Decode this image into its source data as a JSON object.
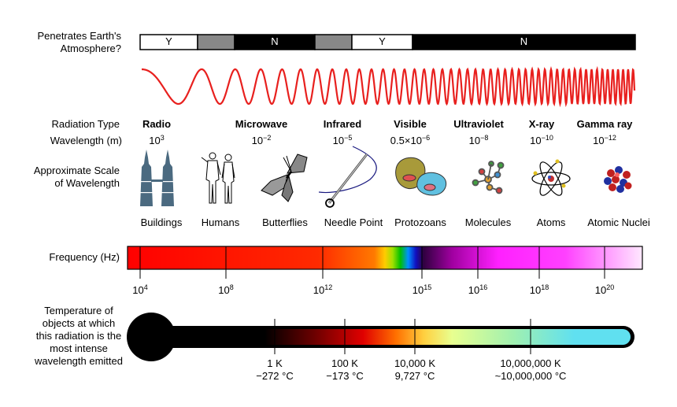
{
  "left_labels": {
    "penetrates": [
      "Penetrates Earth's",
      "Atmosphere?"
    ],
    "radiation_type": "Radiation Type",
    "wavelength": "Wavelength (m)",
    "scale": [
      "Approximate Scale",
      "of Wavelength"
    ],
    "frequency": "Frequency (Hz)",
    "temperature": [
      "Temperature of",
      "objects at which",
      "this radiation is the",
      "most intense",
      "wavelength emitted"
    ]
  },
  "atmosphere_bar": [
    {
      "label": "Y",
      "color": "#ffffff",
      "text_color": "#000000"
    },
    {
      "label": "",
      "color": "#888888",
      "text_color": "#000000"
    },
    {
      "label": "N",
      "color": "#000000",
      "text_color": "#ffffff"
    },
    {
      "label": "",
      "color": "#888888",
      "text_color": "#000000"
    },
    {
      "label": "Y",
      "color": "#ffffff",
      "text_color": "#000000"
    },
    {
      "label": "N",
      "color": "#000000",
      "text_color": "#ffffff"
    }
  ],
  "radiation_types": [
    {
      "name": "Radio",
      "wl_base": "10",
      "wl_exp": "3"
    },
    {
      "name": "Microwave",
      "wl_base": "10",
      "wl_exp": "−2"
    },
    {
      "name": "Infrared",
      "wl_base": "10",
      "wl_exp": "−5"
    },
    {
      "name": "Visible",
      "wl_base": "0.5×10",
      "wl_exp": "−6"
    },
    {
      "name": "Ultraviolet",
      "wl_base": "10",
      "wl_exp": "−8"
    },
    {
      "name": "X-ray",
      "wl_base": "10",
      "wl_exp": "−10"
    },
    {
      "name": "Gamma ray",
      "wl_base": "10",
      "wl_exp": "−12"
    }
  ],
  "scale_objects": [
    {
      "label": "Buildings",
      "icon": "buildings-icon"
    },
    {
      "label": "Humans",
      "icon": "humans-icon"
    },
    {
      "label": "Butterflies",
      "icon": "butterfly-icon"
    },
    {
      "label": "Needle Point",
      "icon": "needle-icon"
    },
    {
      "label": "Protozoans",
      "icon": "protozoan-icon"
    },
    {
      "label": "Molecules",
      "icon": "molecule-icon"
    },
    {
      "label": "Atoms",
      "icon": "atom-icon"
    },
    {
      "label": "Atomic Nuclei",
      "icon": "nucleus-icon"
    }
  ],
  "frequency_ticks": [
    {
      "base": "10",
      "exp": "4"
    },
    {
      "base": "10",
      "exp": "8"
    },
    {
      "base": "10",
      "exp": "12"
    },
    {
      "base": "10",
      "exp": "15"
    },
    {
      "base": "10",
      "exp": "16"
    },
    {
      "base": "10",
      "exp": "18"
    },
    {
      "base": "10",
      "exp": "20"
    }
  ],
  "temperature_ticks": [
    {
      "k": "1 K",
      "c": "−272 °C"
    },
    {
      "k": "100 K",
      "c": "−173 °C"
    },
    {
      "k": "10,000 K",
      "c": "9,727 °C"
    },
    {
      "k": "10,000,000 K",
      "c": "~10,000,000 °C"
    }
  ],
  "colors": {
    "wave": "#e8201e",
    "building": "#4b6a80",
    "thermometer_outline": "#000000"
  }
}
